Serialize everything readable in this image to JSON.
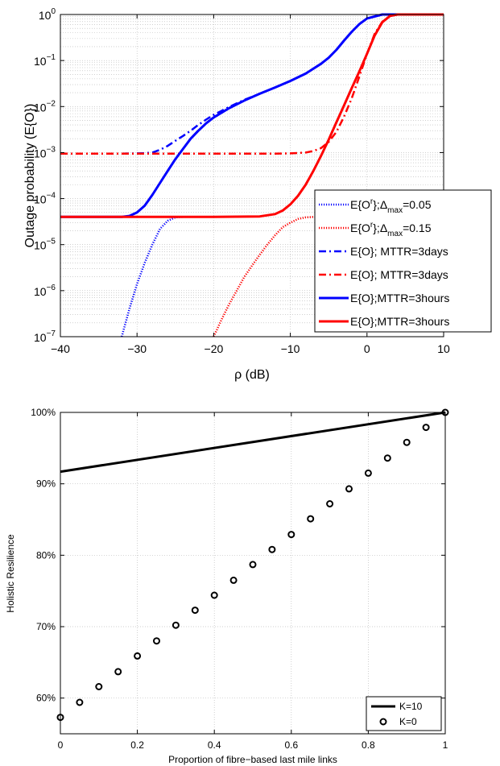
{
  "chart_data": [
    {
      "type": "line",
      "xlabel": "ρ (dB)",
      "ylabel": "Outage probability (E{O})",
      "xlim": [
        -40,
        10
      ],
      "ylim": [
        1e-07,
        1
      ],
      "yscale": "log",
      "grid": true,
      "legend_position": "bottom-right",
      "x_ticks": [
        "−40",
        "−30",
        "−20",
        "−10",
        "0",
        "10"
      ],
      "y_ticks": [
        {
          "base": "10",
          "exp": "0"
        },
        {
          "base": "10",
          "exp": "−1"
        },
        {
          "base": "10",
          "exp": "−2"
        },
        {
          "base": "10",
          "exp": "−3"
        },
        {
          "base": "10",
          "exp": "−4"
        },
        {
          "base": "10",
          "exp": "−5"
        },
        {
          "base": "10",
          "exp": "−6"
        },
        {
          "base": "10",
          "exp": "−7"
        }
      ],
      "series": [
        {
          "legend": {
            "pre": "E{O",
            "sup": "r",
            "mid": "};Δ",
            "sub": "max",
            "post": "=0.05"
          },
          "color": "#0000ff",
          "style": "dotted",
          "width": 2.5,
          "x": [
            -32,
            -31,
            -30,
            -29,
            -28,
            -27,
            -26,
            -25,
            -24
          ],
          "y": [
            1e-07,
            4e-07,
            1.4e-06,
            4e-06,
            1e-05,
            2.2e-05,
            3.3e-05,
            3.9e-05,
            4e-05
          ]
        },
        {
          "legend": {
            "pre": "E{O",
            "sup": "r",
            "mid": "};Δ",
            "sub": "max",
            "post": "=0.15"
          },
          "color": "#ff0000",
          "style": "dotted",
          "width": 2.5,
          "x": [
            -20,
            -19,
            -18,
            -17,
            -16,
            -15,
            -14,
            -13,
            -12,
            -11,
            -10,
            -9,
            -8,
            -7,
            -6
          ],
          "y": [
            1e-07,
            2.3e-07,
            5e-07,
            1e-06,
            2e-06,
            3.5e-06,
            6e-06,
            1e-05,
            1.6e-05,
            2.4e-05,
            3e-05,
            3.6e-05,
            3.9e-05,
            4e-05,
            4e-05
          ]
        },
        {
          "legend": {
            "pre": "E{O}; MTTR=3days"
          },
          "color": "#0000ff",
          "style": "dashdot",
          "width": 2.5,
          "x": [
            -40,
            -32,
            -29,
            -28,
            -27,
            -26,
            -25,
            -24,
            -23,
            -22,
            -21,
            -20,
            -18,
            -16,
            -14,
            -12,
            -10,
            -8,
            -6,
            -5,
            -4,
            -3,
            -2,
            -1,
            0,
            2,
            4,
            10
          ],
          "y": [
            0.00095,
            0.00095,
            0.00097,
            0.001,
            0.00115,
            0.0014,
            0.0018,
            0.0023,
            0.003,
            0.004,
            0.0052,
            0.0066,
            0.0098,
            0.014,
            0.019,
            0.026,
            0.036,
            0.052,
            0.085,
            0.115,
            0.17,
            0.27,
            0.42,
            0.62,
            0.82,
            1,
            1,
            1
          ]
        },
        {
          "legend": {
            "pre": "E{O}; MTTR=3days"
          },
          "color": "#ff0000",
          "style": "dashdot",
          "width": 2.5,
          "x": [
            -40,
            -20,
            -12,
            -10,
            -8,
            -7,
            -6,
            -5,
            -4,
            -3,
            -2,
            -1,
            0,
            1,
            2,
            3,
            4,
            10
          ],
          "y": [
            0.00095,
            0.00095,
            0.00095,
            0.00096,
            0.001,
            0.00108,
            0.00125,
            0.0017,
            0.0028,
            0.006,
            0.015,
            0.045,
            0.14,
            0.38,
            0.7,
            0.93,
            1,
            1
          ]
        },
        {
          "legend": {
            "pre": "E{O};MTTR=3hours"
          },
          "color": "#0000ff",
          "style": "solid",
          "width": 3,
          "x": [
            -40,
            -32,
            -31,
            -30,
            -29,
            -28,
            -27,
            -26,
            -25,
            -24,
            -23,
            -22,
            -21,
            -20,
            -18,
            -16,
            -14,
            -12,
            -10,
            -8,
            -6,
            -5,
            -4,
            -3,
            -2,
            -1,
            0,
            2,
            4,
            10
          ],
          "y": [
            4e-05,
            4e-05,
            4.2e-05,
            5e-05,
            7e-05,
            0.00012,
            0.00022,
            0.0004,
            0.00072,
            0.0012,
            0.002,
            0.003,
            0.0043,
            0.0058,
            0.0092,
            0.0135,
            0.019,
            0.026,
            0.036,
            0.052,
            0.085,
            0.115,
            0.17,
            0.27,
            0.42,
            0.62,
            0.82,
            1,
            1,
            1
          ]
        },
        {
          "legend": {
            "pre": "E{O};MTTR=3hours"
          },
          "color": "#ff0000",
          "style": "solid",
          "width": 3,
          "x": [
            -40,
            -20,
            -14,
            -12,
            -11,
            -10,
            -9,
            -8,
            -7,
            -6,
            -5,
            -4,
            -3,
            -2,
            -1,
            0,
            1,
            2,
            3,
            4,
            10
          ],
          "y": [
            4e-05,
            4e-05,
            4.1e-05,
            4.6e-05,
            5.5e-05,
            7.5e-05,
            0.000115,
            0.0002,
            0.0004,
            0.00085,
            0.0019,
            0.0045,
            0.0105,
            0.025,
            0.058,
            0.14,
            0.35,
            0.68,
            0.93,
            1,
            1
          ]
        }
      ]
    },
    {
      "type": "line",
      "xlabel": "Proportion of fibre−based last mile links",
      "ylabel": "Holistic Resilience",
      "xlim": [
        0,
        1
      ],
      "ylim": [
        55,
        100
      ],
      "grid": true,
      "legend_position": "bottom-right",
      "x_ticks": [
        "0",
        "0.2",
        "0.4",
        "0.6",
        "0.8",
        "1"
      ],
      "y_ticks": [
        "60%",
        "70%",
        "80%",
        "90%",
        "100%"
      ],
      "series": [
        {
          "name": "K=10",
          "style": "solid",
          "color": "#000000",
          "x": [
            0,
            1
          ],
          "y": [
            91.7,
            100
          ]
        },
        {
          "name": "K=0",
          "style": "markers",
          "color": "#000000",
          "x": [
            0,
            0.05,
            0.1,
            0.15,
            0.2,
            0.25,
            0.3,
            0.35,
            0.4,
            0.45,
            0.5,
            0.55,
            0.6,
            0.65,
            0.7,
            0.75,
            0.8,
            0.85,
            0.9,
            0.95,
            1
          ],
          "y": [
            57.3,
            59.4,
            61.6,
            63.7,
            65.9,
            68.0,
            70.2,
            72.3,
            74.4,
            76.5,
            78.7,
            80.8,
            82.9,
            85.1,
            87.2,
            89.3,
            91.5,
            93.6,
            95.8,
            97.9,
            100
          ]
        }
      ]
    }
  ]
}
